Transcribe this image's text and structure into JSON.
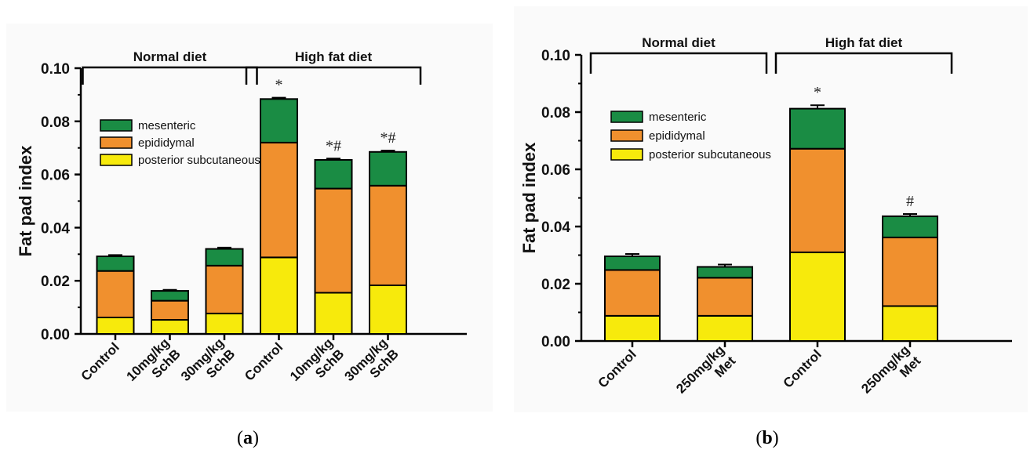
{
  "colors": {
    "mesenteric": "#1a8c44",
    "epididymal": "#f0902e",
    "posterior_subcutaneous": "#f7ea0c",
    "panel_background": "#fafafa"
  },
  "chart_data": [
    {
      "type": "bar",
      "stacked": true,
      "panel": "a",
      "caption_open": "(",
      "caption_letter": "a",
      "caption_close": ")",
      "ylabel": "Fat pad index",
      "ylim": [
        0,
        0.1
      ],
      "yticks": [
        "0.00",
        "0.02",
        "0.04",
        "0.06",
        "0.08",
        "0.10"
      ],
      "categories": [
        [
          "Control"
        ],
        [
          "10mg/kg",
          "SchB"
        ],
        [
          "30mg/kg",
          "SchB"
        ],
        [
          "Control"
        ],
        [
          "10mg/kg",
          "SchB"
        ],
        [
          "30mg/kg",
          "SchB"
        ]
      ],
      "series": [
        {
          "name": "posterior subcutaneous",
          "color_key": "posterior_subcutaneous",
          "values": [
            0.0062,
            0.0053,
            0.0077,
            0.0288,
            0.0155,
            0.0183
          ],
          "errors": [
            0.0005,
            0.0004,
            0.0005,
            0.001,
            0.001,
            0.001
          ]
        },
        {
          "name": "epididymal",
          "color_key": "epididymal",
          "values": [
            0.0175,
            0.0072,
            0.018,
            0.0432,
            0.0392,
            0.0375
          ],
          "errors": [
            0.0007,
            0.0007,
            0.0008,
            0.0007,
            0.0025,
            0.0015
          ]
        },
        {
          "name": "mesenteric",
          "color_key": "mesenteric",
          "values": [
            0.0055,
            0.0037,
            0.0063,
            0.0164,
            0.0108,
            0.0127
          ],
          "errors": [
            0.0005,
            0.0004,
            0.0005,
            0.0005,
            0.0005,
            0.0005
          ]
        }
      ],
      "significance": [
        "",
        "",
        "",
        "*",
        "*#",
        "*#"
      ],
      "groups": [
        {
          "label": "Normal diet",
          "span": [
            0,
            2
          ]
        },
        {
          "label": "High fat diet",
          "span": [
            3,
            5
          ]
        }
      ],
      "legend_position": "upper-left"
    },
    {
      "type": "bar",
      "stacked": true,
      "panel": "b",
      "caption_open": "(",
      "caption_letter": "b",
      "caption_close": ")",
      "ylabel": "Fat pad index",
      "ylim": [
        0,
        0.1
      ],
      "yticks": [
        "0.00",
        "0.02",
        "0.04",
        "0.06",
        "0.08",
        "0.10"
      ],
      "categories": [
        [
          "Control"
        ],
        [
          "250mg/kg",
          "Met"
        ],
        [
          "Control"
        ],
        [
          "250mg/kg",
          "Met"
        ]
      ],
      "series": [
        {
          "name": "posterior subcutaneous",
          "color_key": "posterior_subcutaneous",
          "values": [
            0.0088,
            0.0088,
            0.031,
            0.0122
          ],
          "errors": [
            0.0004,
            0.0004,
            0.0028,
            0.0015
          ]
        },
        {
          "name": "epididymal",
          "color_key": "epididymal",
          "values": [
            0.016,
            0.0133,
            0.0362,
            0.024
          ],
          "errors": [
            0.0008,
            0.0007,
            0.003,
            0.0028
          ]
        },
        {
          "name": "mesenteric",
          "color_key": "mesenteric",
          "values": [
            0.0048,
            0.0038,
            0.014,
            0.0074
          ],
          "errors": [
            0.0008,
            0.0008,
            0.0012,
            0.0008
          ]
        }
      ],
      "significance": [
        "",
        "",
        "*",
        "#"
      ],
      "groups": [
        {
          "label": "Normal diet",
          "span": [
            0,
            1
          ]
        },
        {
          "label": "High fat diet",
          "span": [
            2,
            3
          ]
        }
      ],
      "legend_position": "upper-left"
    }
  ]
}
